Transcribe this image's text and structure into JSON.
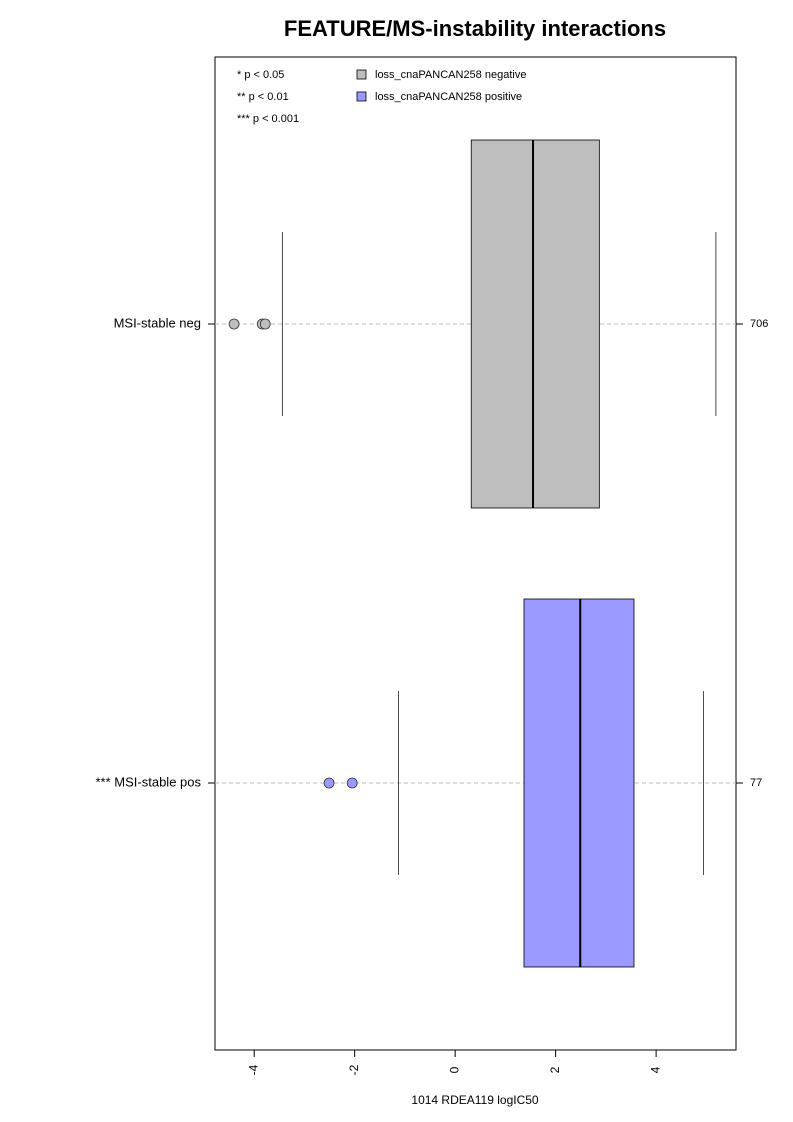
{
  "chart_data": {
    "type": "boxplot",
    "title": "FEATURE/MS-instability interactions",
    "xlabel": "1014 RDEA119 logIC50",
    "categories": [
      "MSI-stable neg",
      "*** MSI-stable pos"
    ],
    "counts": [
      706,
      77
    ],
    "whisker_low": [
      -3.44,
      -1.13
    ],
    "q1": [
      0.32,
      1.37
    ],
    "median": [
      1.55,
      2.49
    ],
    "q3": [
      2.87,
      3.56
    ],
    "whisker_high": [
      5.19,
      4.94
    ],
    "outliers": [
      [
        -4.4,
        -3.84,
        -3.78
      ],
      [
        -2.51,
        -2.05
      ]
    ],
    "colors": [
      "#bebebe",
      "#9999ff"
    ],
    "legend": [
      "loss_cnaPANCAN258 negative",
      "loss_cnaPANCAN258 positive"
    ],
    "annotations": [
      "* p < 0.05",
      "** p < 0.01",
      "*** p < 0.001"
    ],
    "xlim": [
      -4.78,
      5.59
    ],
    "xticks": [
      -4,
      -2,
      0,
      2,
      4
    ]
  }
}
